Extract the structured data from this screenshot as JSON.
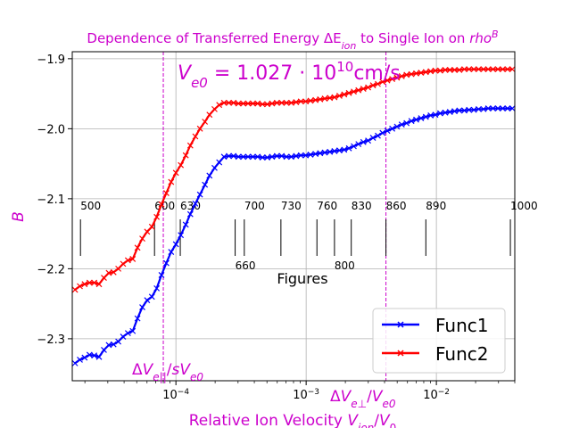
{
  "chart_data": {
    "type": "line",
    "title": "Dependence of Transferred Energy ΔE_ion to Single Ion on rho^B",
    "xlabel": "Relative Ion Velocity  V_ion/V_0",
    "ylabel": "B",
    "xscale": "log",
    "xlim": [
      1.6e-05,
      0.04
    ],
    "ylim": [
      -2.36,
      -1.89
    ],
    "grid": true,
    "legend_position": "lower-right",
    "x_ticks": [
      {
        "value": 0.0001,
        "label": "10^-4"
      },
      {
        "value": 0.001,
        "label": "10^-3"
      },
      {
        "value": 0.01,
        "label": "10^-2"
      }
    ],
    "y_ticks": [
      {
        "value": -1.9,
        "label": "−1.9"
      },
      {
        "value": -2.0,
        "label": "−2.0"
      },
      {
        "value": -2.1,
        "label": "−2.1"
      },
      {
        "value": -2.2,
        "label": "−2.2"
      },
      {
        "value": -2.3,
        "label": "−2.3"
      }
    ],
    "annotations": {
      "big_text": "V_e0 = 1.027 · 10^10 cm/s",
      "vline1": {
        "x": 8e-05,
        "label": "ΔV_e|| /sV_e0"
      },
      "vline2": {
        "x": 0.0041,
        "label": "ΔV_e⊥ /V_e0"
      },
      "figures_label": "Figures",
      "figure_marks": [
        {
          "x": 1.85e-05,
          "label": "500",
          "pos": "above"
        },
        {
          "x": 6.85e-05,
          "label": "600",
          "pos": "above"
        },
        {
          "x": 0.000108,
          "label": "630",
          "pos": "above"
        },
        {
          "x": 0.000285,
          "label": "660",
          "pos": "below"
        },
        {
          "x": 0.000335,
          "label": "700",
          "pos": "above"
        },
        {
          "x": 0.00064,
          "label": "730",
          "pos": "above"
        },
        {
          "x": 0.00121,
          "label": "760",
          "pos": "above"
        },
        {
          "x": 0.00165,
          "label": "800",
          "pos": "below"
        },
        {
          "x": 0.00222,
          "label": "830",
          "pos": "above"
        },
        {
          "x": 0.0041,
          "label": "860",
          "pos": "above"
        },
        {
          "x": 0.0083,
          "label": "890",
          "pos": "above"
        },
        {
          "x": 0.037,
          "label": "1000",
          "pos": "above"
        }
      ]
    },
    "series": [
      {
        "name": "Func1",
        "color": "#0000ff",
        "x": [
          1.68e-05,
          1.83e-05,
          1.99e-05,
          2.17e-05,
          2.36e-05,
          2.57e-05,
          2.8e-05,
          3.05e-05,
          3.32e-05,
          3.61e-05,
          3.93e-05,
          4.28e-05,
          4.66e-05,
          5.07e-05,
          5.52e-05,
          6.01e-05,
          6.54e-05,
          7.12e-05,
          7.75e-05,
          8.44e-05,
          9.19e-05,
          0.0001,
          0.000109,
          0.000119,
          0.000129,
          0.000141,
          0.000153,
          0.000167,
          0.000181,
          0.000198,
          0.000215,
          0.000234,
          0.000255,
          0.000277,
          0.000302,
          0.000329,
          0.000358,
          0.00039,
          0.000424,
          0.000462,
          0.000503,
          0.000547,
          0.000596,
          0.000649,
          0.000706,
          0.000769,
          0.000837,
          0.000911,
          0.000992,
          0.00108,
          0.00118,
          0.00128,
          0.00139,
          0.00152,
          0.00165,
          0.0018,
          0.00196,
          0.00213,
          0.00232,
          0.00252,
          0.00275,
          0.00299,
          0.00326,
          0.00355,
          0.00386,
          0.0042,
          0.00458,
          0.00498,
          0.00542,
          0.0059,
          0.00643,
          0.007,
          0.00762,
          0.0083,
          0.00903,
          0.00983,
          0.0107,
          0.0117,
          0.0127,
          0.0138,
          0.015,
          0.0164,
          0.0178,
          0.0194,
          0.0211,
          0.023,
          0.025,
          0.0272,
          0.0297,
          0.0323,
          0.0352,
          0.0383
        ],
        "values": [
          -2.335,
          -2.33,
          -2.327,
          -2.323,
          -2.324,
          -2.326,
          -2.316,
          -2.309,
          -2.308,
          -2.304,
          -2.297,
          -2.292,
          -2.289,
          -2.271,
          -2.255,
          -2.245,
          -2.24,
          -2.228,
          -2.209,
          -2.192,
          -2.176,
          -2.165,
          -2.152,
          -2.137,
          -2.122,
          -2.107,
          -2.094,
          -2.08,
          -2.067,
          -2.056,
          -2.048,
          -2.04,
          -2.039,
          -2.039,
          -2.04,
          -2.04,
          -2.04,
          -2.04,
          -2.04,
          -2.041,
          -2.041,
          -2.04,
          -2.039,
          -2.039,
          -2.04,
          -2.04,
          -2.039,
          -2.038,
          -2.038,
          -2.037,
          -2.036,
          -2.035,
          -2.034,
          -2.033,
          -2.032,
          -2.031,
          -2.03,
          -2.028,
          -2.025,
          -2.022,
          -2.019,
          -2.017,
          -2.013,
          -2.01,
          -2.006,
          -2.003,
          -2.0,
          -1.997,
          -1.994,
          -1.992,
          -1.989,
          -1.987,
          -1.985,
          -1.983,
          -1.981,
          -1.98,
          -1.978,
          -1.977,
          -1.976,
          -1.975,
          -1.974,
          -1.974,
          -1.973,
          -1.973,
          -1.972,
          -1.972,
          -1.971,
          -1.971,
          -1.971,
          -1.971,
          -1.971,
          -1.971
        ]
      },
      {
        "name": "Func2",
        "color": "#ff0000",
        "x": [
          1.68e-05,
          1.83e-05,
          1.99e-05,
          2.17e-05,
          2.36e-05,
          2.57e-05,
          2.8e-05,
          3.05e-05,
          3.32e-05,
          3.61e-05,
          3.93e-05,
          4.28e-05,
          4.66e-05,
          5.07e-05,
          5.52e-05,
          6.01e-05,
          6.54e-05,
          7.12e-05,
          7.75e-05,
          8.44e-05,
          9.19e-05,
          0.0001,
          0.000109,
          0.000119,
          0.000129,
          0.000141,
          0.000153,
          0.000167,
          0.000181,
          0.000198,
          0.000215,
          0.000234,
          0.000255,
          0.000277,
          0.000302,
          0.000329,
          0.000358,
          0.00039,
          0.000424,
          0.000462,
          0.000503,
          0.000547,
          0.000596,
          0.000649,
          0.000706,
          0.000769,
          0.000837,
          0.000911,
          0.000992,
          0.00108,
          0.00118,
          0.00128,
          0.00139,
          0.00152,
          0.00165,
          0.0018,
          0.00196,
          0.00213,
          0.00232,
          0.00252,
          0.00275,
          0.00299,
          0.00326,
          0.00355,
          0.00386,
          0.0042,
          0.00458,
          0.00498,
          0.00542,
          0.0059,
          0.00643,
          0.007,
          0.00762,
          0.0083,
          0.00903,
          0.00983,
          0.0107,
          0.0117,
          0.0127,
          0.0138,
          0.015,
          0.0164,
          0.0178,
          0.0194,
          0.0211,
          0.023,
          0.025,
          0.0272,
          0.0297,
          0.0323,
          0.0352,
          0.0383
        ],
        "values": [
          -2.23,
          -2.225,
          -2.222,
          -2.22,
          -2.22,
          -2.222,
          -2.213,
          -2.206,
          -2.205,
          -2.2,
          -2.193,
          -2.188,
          -2.186,
          -2.17,
          -2.157,
          -2.147,
          -2.14,
          -2.126,
          -2.108,
          -2.092,
          -2.076,
          -2.063,
          -2.052,
          -2.038,
          -2.024,
          -2.011,
          -2.0,
          -1.99,
          -1.98,
          -1.972,
          -1.966,
          -1.963,
          -1.963,
          -1.963,
          -1.964,
          -1.964,
          -1.964,
          -1.964,
          -1.964,
          -1.965,
          -1.965,
          -1.964,
          -1.963,
          -1.963,
          -1.963,
          -1.963,
          -1.962,
          -1.961,
          -1.961,
          -1.96,
          -1.959,
          -1.958,
          -1.957,
          -1.956,
          -1.955,
          -1.953,
          -1.951,
          -1.949,
          -1.947,
          -1.945,
          -1.943,
          -1.941,
          -1.938,
          -1.936,
          -1.933,
          -1.931,
          -1.929,
          -1.927,
          -1.925,
          -1.923,
          -1.922,
          -1.921,
          -1.92,
          -1.919,
          -1.918,
          -1.917,
          -1.917,
          -1.916,
          -1.916,
          -1.916,
          -1.916,
          -1.915,
          -1.915,
          -1.915,
          -1.915,
          -1.915,
          -1.915,
          -1.915,
          -1.915,
          -1.915,
          -1.915,
          -1.915
        ]
      }
    ],
    "accent_color": "#cc00cc"
  }
}
